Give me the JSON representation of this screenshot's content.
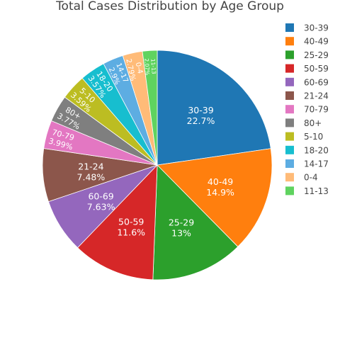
{
  "chart_data": {
    "type": "pie",
    "title": "Total Cases Distribution by Age Group",
    "categories": [
      "30-39",
      "40-49",
      "25-29",
      "50-59",
      "60-69",
      "21-24",
      "70-79",
      "80+",
      "5-10",
      "18-20",
      "14-17",
      "0-4",
      "11-13"
    ],
    "values": [
      22.7,
      14.9,
      13,
      11.6,
      7.63,
      7.48,
      3.99,
      3.77,
      3.59,
      3.57,
      2.9,
      2.79,
      2.07
    ],
    "value_labels": [
      "22.7%",
      "14.9%",
      "13%",
      "11.6%",
      "7.63%",
      "7.48%",
      "3.99%",
      "3.77%",
      "3.59%",
      "3.57%",
      "2.9%",
      "2.79%",
      "2.07%"
    ],
    "colors": [
      "#1f77b4",
      "#ff7f0e",
      "#2ca02c",
      "#d62728",
      "#9467bd",
      "#8c564b",
      "#e377c2",
      "#7f7f7f",
      "#bcbd22",
      "#17becf",
      "#5dade2",
      "#ffbb78",
      "#5fd35f"
    ],
    "direction": "clockwise",
    "legend_position": "right"
  }
}
